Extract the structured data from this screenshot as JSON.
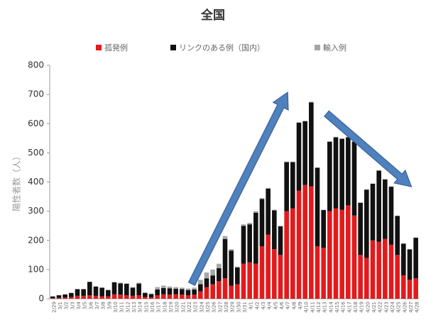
{
  "chart_data": {
    "type": "stacked-bar",
    "title": "全国",
    "y_label": "陽性者数（人）",
    "categories": [
      "2/29",
      "3/1",
      "3/2",
      "3/3",
      "3/4",
      "3/5",
      "3/6",
      "3/7",
      "3/8",
      "3/9",
      "3/10",
      "3/11",
      "3/12",
      "3/13",
      "3/14",
      "3/15",
      "3/16",
      "3/17",
      "3/18",
      "3/19",
      "3/20",
      "3/21",
      "3/22",
      "3/23",
      "3/24",
      "3/25",
      "3/26",
      "3/27",
      "3/28",
      "3/29",
      "3/30",
      "3/31",
      "4/1",
      "4/2",
      "4/3",
      "4/4",
      "4/5",
      "4/6",
      "4/7",
      "4/8",
      "4/9",
      "4/10",
      "4/11",
      "4/12",
      "4/13",
      "4/14",
      "4/15",
      "4/16",
      "4/17",
      "4/18",
      "4/19",
      "4/20",
      "4/21",
      "4/22",
      "4/23",
      "4/24",
      "4/25",
      "4/26",
      "4/27",
      "4/28"
    ],
    "series": [
      {
        "name": "孤発例",
        "color": "#e31a1c",
        "values": [
          2,
          3,
          4,
          6,
          10,
          10,
          12,
          10,
          8,
          8,
          15,
          14,
          12,
          10,
          12,
          6,
          5,
          12,
          15,
          14,
          15,
          14,
          12,
          14,
          25,
          40,
          50,
          60,
          70,
          45,
          50,
          120,
          125,
          120,
          180,
          220,
          170,
          150,
          300,
          310,
          370,
          390,
          385,
          180,
          175,
          300,
          310,
          305,
          320,
          285,
          150,
          140,
          200,
          195,
          205,
          185,
          150,
          80,
          65,
          70
        ]
      },
      {
        "name": "リンクのある例（国内）",
        "color": "#111111",
        "values": [
          6,
          9,
          11,
          14,
          23,
          23,
          46,
          32,
          30,
          22,
          41,
          39,
          39,
          28,
          40,
          14,
          11,
          20,
          22,
          22,
          19,
          19,
          18,
          18,
          25,
          30,
          30,
          45,
          135,
          120,
          57,
          130,
          130,
          175,
          162,
          157,
          133,
          98,
          168,
          158,
          233,
          218,
          288,
          269,
          129,
          238,
          243,
          243,
          233,
          253,
          179,
          234,
          194,
          244,
          204,
          199,
          134,
          109,
          104,
          139
        ]
      },
      {
        "name": "輸入例",
        "color": "#a6a6a6",
        "values": [
          0,
          0,
          0,
          0,
          0,
          0,
          0,
          0,
          0,
          0,
          2,
          2,
          2,
          2,
          3,
          2,
          2,
          8,
          8,
          6,
          6,
          5,
          5,
          6,
          15,
          20,
          20,
          15,
          10,
          5,
          3,
          5,
          5,
          5,
          3,
          3,
          2,
          2,
          2,
          2,
          2,
          2,
          2,
          1,
          1,
          2,
          2,
          2,
          2,
          2,
          1,
          1,
          1,
          1,
          1,
          1,
          1,
          1,
          1,
          1
        ]
      }
    ],
    "ylim": [
      0,
      800
    ],
    "yticks": [
      0,
      100,
      200,
      300,
      400,
      500,
      600,
      700,
      800
    ]
  }
}
